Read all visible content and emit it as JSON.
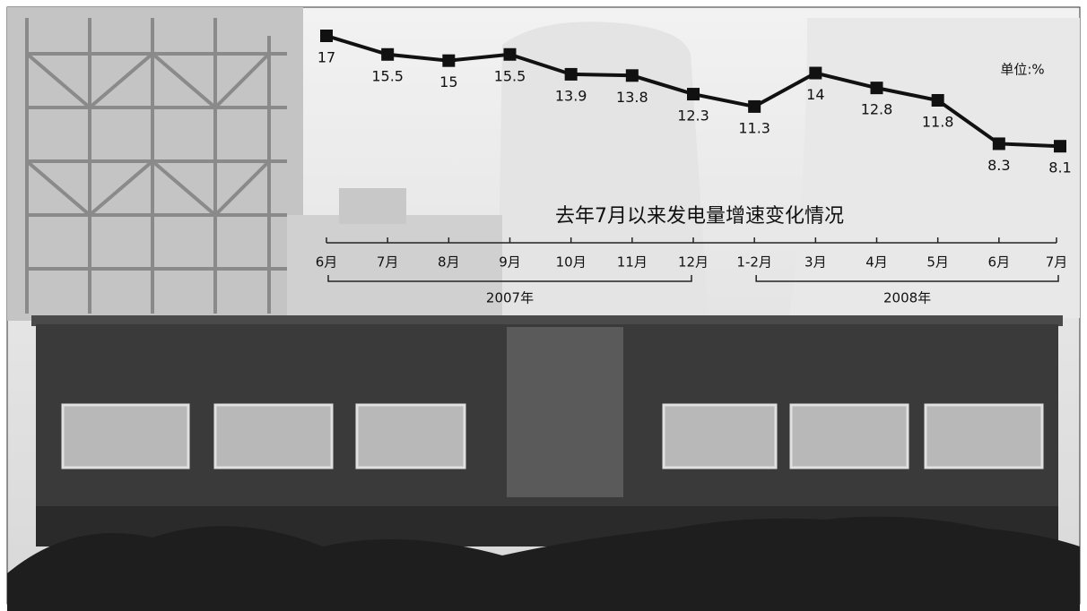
{
  "chart_data": {
    "type": "line",
    "title": "去年7月以来发电量增速变化情况",
    "unit": "单位:%",
    "categories": [
      "6月",
      "7月",
      "8月",
      "9月",
      "10月",
      "11月",
      "12月",
      "1-2月",
      "3月",
      "4月",
      "5月",
      "6月",
      "7月"
    ],
    "values": [
      17,
      15.5,
      15,
      15.5,
      13.9,
      13.8,
      12.3,
      11.3,
      14,
      12.8,
      11.8,
      8.3,
      8.1
    ],
    "groups": [
      "2007年",
      "2008年"
    ],
    "color": "#111111",
    "ylim": [
      8,
      17
    ]
  }
}
